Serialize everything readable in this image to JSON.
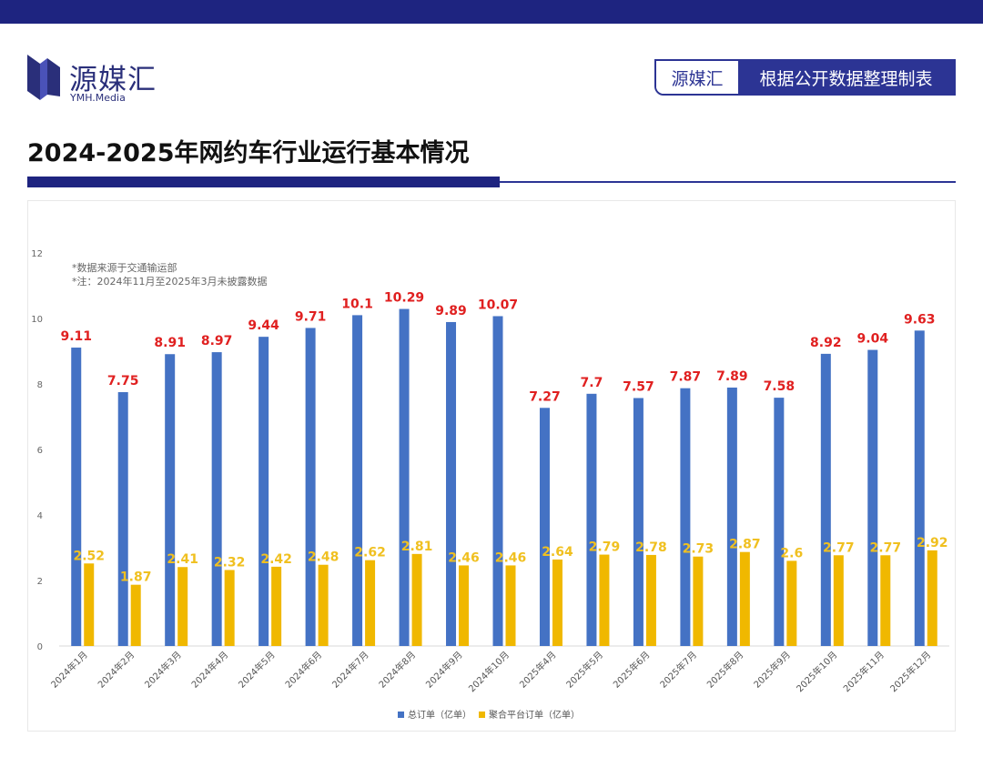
{
  "header": {
    "logo_cn": "源媒汇",
    "logo_en": "YMH.Media",
    "source_org": "源媒汇",
    "source_desc": "根据公开数据整理制表"
  },
  "page_title": "2024-2025年网约车行业运行基本情况",
  "notes": [
    "*数据来源于交通输运部",
    "*注：2024年11月至2025年3月未披露数据"
  ],
  "colors": {
    "brand": "#1e2480",
    "total": "#4472c4",
    "agg": "#f0b800",
    "total_label": "#e02020",
    "agg_label": "#f0c020"
  },
  "chart_data": {
    "type": "bar",
    "title": "2024-2025年网约车行业运行基本情况",
    "xlabel": "",
    "ylabel": "",
    "ylim": [
      0,
      12
    ],
    "yticks": [
      0,
      2,
      4,
      6,
      8,
      10,
      12
    ],
    "categories": [
      "2024年1月",
      "2024年2月",
      "2024年3月",
      "2024年4月",
      "2024年5月",
      "2024年6月",
      "2024年7月",
      "2024年8月",
      "2024年9月",
      "2024年10月",
      "2025年4月",
      "2025年5月",
      "2025年6月",
      "2025年7月",
      "2025年8月",
      "2025年9月",
      "2025年10月",
      "2025年11月",
      "2025年12月"
    ],
    "series": [
      {
        "name": "总订单（亿单）",
        "values": [
          9.11,
          7.75,
          8.91,
          8.97,
          9.44,
          9.71,
          10.1,
          10.29,
          9.89,
          10.07,
          7.27,
          7.7,
          7.57,
          7.87,
          7.89,
          7.58,
          8.92,
          9.04,
          9.63
        ]
      },
      {
        "name": "聚合平台订单（亿单）",
        "values": [
          2.52,
          1.87,
          2.41,
          2.32,
          2.42,
          2.48,
          2.62,
          2.81,
          2.46,
          2.46,
          2.64,
          2.79,
          2.78,
          2.73,
          2.87,
          2.6,
          2.77,
          2.77,
          2.92
        ]
      }
    ],
    "legend_position": "bottom-center"
  }
}
